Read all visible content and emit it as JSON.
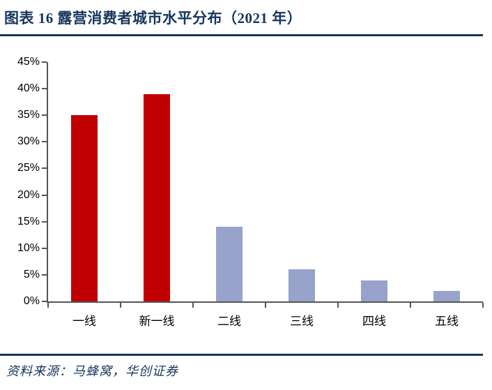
{
  "header": {
    "title": "图表 16  露营消费者城市水平分布（2021 年）"
  },
  "footer": {
    "source": "资料来源：马蜂窝，华创证券"
  },
  "colors": {
    "navy": "#17365D",
    "red": "#C00000",
    "periwinkle": "#97A3CB",
    "axis": "#555555",
    "label_text": "#000000"
  },
  "chart_data": {
    "type": "bar",
    "title": "露营消费者城市水平分布（2021 年）",
    "categories": [
      "一线",
      "新一线",
      "二线",
      "三线",
      "四线",
      "五线"
    ],
    "values": [
      35,
      39,
      14,
      6,
      4,
      2
    ],
    "unit": "%",
    "xlabel": "",
    "ylabel": "",
    "ylim": [
      0,
      45
    ],
    "ytick_step": 5,
    "ytick_labels": [
      "0%",
      "5%",
      "10%",
      "15%",
      "20%",
      "25%",
      "30%",
      "35%",
      "40%",
      "45%"
    ],
    "bar_colors": [
      "#C00000",
      "#C00000",
      "#97A3CB",
      "#97A3CB",
      "#97A3CB",
      "#97A3CB"
    ],
    "grid": false,
    "legend": null
  }
}
